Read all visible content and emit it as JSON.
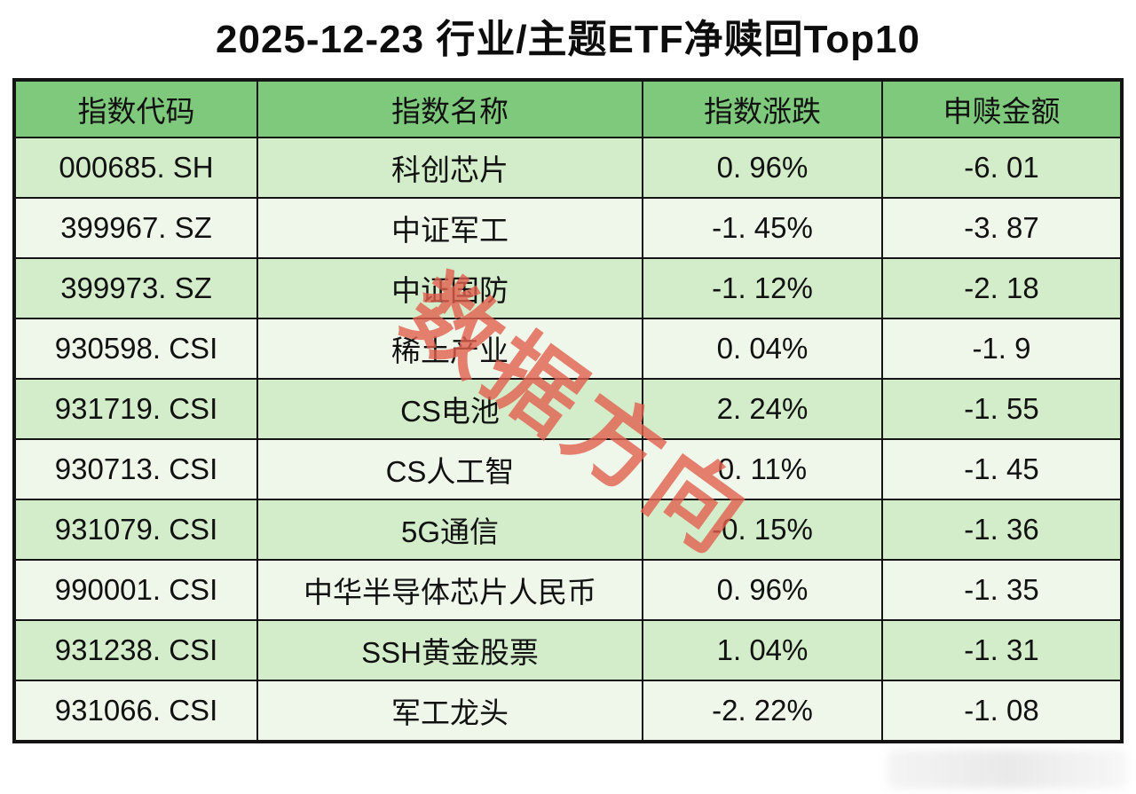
{
  "title": "2025-12-23 行业/主题ETF净赎回Top10",
  "watermark_text": "数据方向",
  "colors": {
    "header_green": "#7ec97c",
    "row_odd_green": "#d3edcb",
    "row_even_green": "#eef7ea",
    "border_black": "#141414",
    "watermark_red": "#e2604f",
    "title_black": "#0d0d0d"
  },
  "table": {
    "headers": [
      "指数代码",
      "指数名称",
      "指数涨跌",
      "申赎金额"
    ],
    "rows": [
      {
        "code": "000685. SH",
        "name": "科创芯片",
        "change": "0. 96%",
        "amount": "-6. 01"
      },
      {
        "code": "399967. SZ",
        "name": "中证军工",
        "change": "-1. 45%",
        "amount": "-3. 87"
      },
      {
        "code": "399973. SZ",
        "name": "中证国防",
        "change": "-1. 12%",
        "amount": "-2. 18"
      },
      {
        "code": "930598. CSI",
        "name": "稀土产业",
        "change": "0. 04%",
        "amount": "-1. 9"
      },
      {
        "code": "931719. CSI",
        "name": "CS电池",
        "change": "2. 24%",
        "amount": "-1. 55"
      },
      {
        "code": "930713. CSI",
        "name": "CS人工智",
        "change": "0. 11%",
        "amount": "-1. 45"
      },
      {
        "code": "931079. CSI",
        "name": "5G通信",
        "change": "-0. 15%",
        "amount": "-1. 36"
      },
      {
        "code": "990001. CSI",
        "name": "中华半导体芯片人民币",
        "change": "0. 96%",
        "amount": "-1. 35"
      },
      {
        "code": "931238. CSI",
        "name": "SSH黄金股票",
        "change": "1. 04%",
        "amount": "-1. 31"
      },
      {
        "code": "931066. CSI",
        "name": "军工龙头",
        "change": "-2. 22%",
        "amount": "-1. 08"
      }
    ]
  },
  "chart_data": {
    "type": "table",
    "title": "2025-12-23 行业/主题ETF净赎回Top10",
    "columns": [
      "指数代码",
      "指数名称",
      "指数涨跌(%)",
      "申赎金额"
    ],
    "rows": [
      [
        "000685.SH",
        "科创芯片",
        0.96,
        -6.01
      ],
      [
        "399967.SZ",
        "中证军工",
        -1.45,
        -3.87
      ],
      [
        "399973.SZ",
        "中证国防",
        -1.12,
        -2.18
      ],
      [
        "930598.CSI",
        "稀土产业",
        0.04,
        -1.9
      ],
      [
        "931719.CSI",
        "CS电池",
        2.24,
        -1.55
      ],
      [
        "930713.CSI",
        "CS人工智",
        0.11,
        -1.45
      ],
      [
        "931079.CSI",
        "5G通信",
        -0.15,
        -1.36
      ],
      [
        "990001.CSI",
        "中华半导体芯片人民币",
        0.96,
        -1.35
      ],
      [
        "931238.CSI",
        "SSH黄金股票",
        1.04,
        -1.31
      ],
      [
        "931066.CSI",
        "军工龙头",
        -2.22,
        -1.08
      ]
    ]
  }
}
